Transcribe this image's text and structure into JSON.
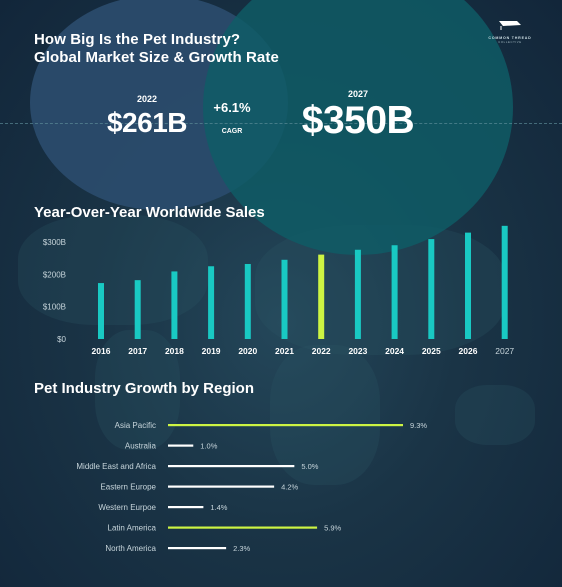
{
  "header": {
    "title_line1": "How Big Is the Pet Industry?",
    "title_line2": "Global Market Size & Growth Rate",
    "logo_text": "COMMON THREAD",
    "logo_sub": "COLLECTIVE"
  },
  "market": {
    "year_left": "2022",
    "value_left": "$261B",
    "growth": "+6.1%",
    "growth_label": "CAGR",
    "year_right": "2027",
    "value_right": "$350B"
  },
  "colors": {
    "teal": "#19c9c3",
    "highlight": "#cdf443",
    "white_bar": "#ffffff",
    "axis_text": "#c7d5db",
    "left_circle": "#2b4d6e",
    "right_circle": "#0f5d66"
  },
  "chart_data": [
    {
      "type": "bar",
      "title": "Year-Over-Year Worldwide Sales",
      "categories": [
        "2016",
        "2017",
        "2018",
        "2019",
        "2020",
        "2021",
        "2022",
        "2023",
        "2024",
        "2025",
        "2026",
        "2027"
      ],
      "values": [
        173,
        182,
        209,
        225,
        232,
        245,
        261,
        276,
        290,
        309,
        329,
        350
      ],
      "highlight": "2022",
      "ylim": [
        0,
        300
      ],
      "yticks": [
        {
          "value": 0,
          "label": "$0"
        },
        {
          "value": 100,
          "label": "$100B"
        },
        {
          "value": 200,
          "label": "$200B"
        },
        {
          "value": 300,
          "label": "$300B"
        }
      ],
      "xlabel": "",
      "ylabel": "",
      "grid": false
    },
    {
      "type": "bar",
      "orientation": "horizontal",
      "title": "Pet Industry Growth by Region",
      "categories": [
        "Asia Pacific",
        "Australia",
        "Middle East and Africa",
        "Eastern Europe",
        "Western Eurpoe",
        "Latin America",
        "North America"
      ],
      "values": [
        9.3,
        1.0,
        5.0,
        4.2,
        1.4,
        5.9,
        2.3
      ],
      "value_labels": [
        "9.3%",
        "1.0%",
        "5.0%",
        "4.2%",
        "1.4%",
        "5.9%",
        "2.3%"
      ],
      "highlight": [
        "Asia Pacific",
        "Latin America"
      ],
      "xlim": [
        0,
        9.3
      ],
      "grid": false
    }
  ]
}
